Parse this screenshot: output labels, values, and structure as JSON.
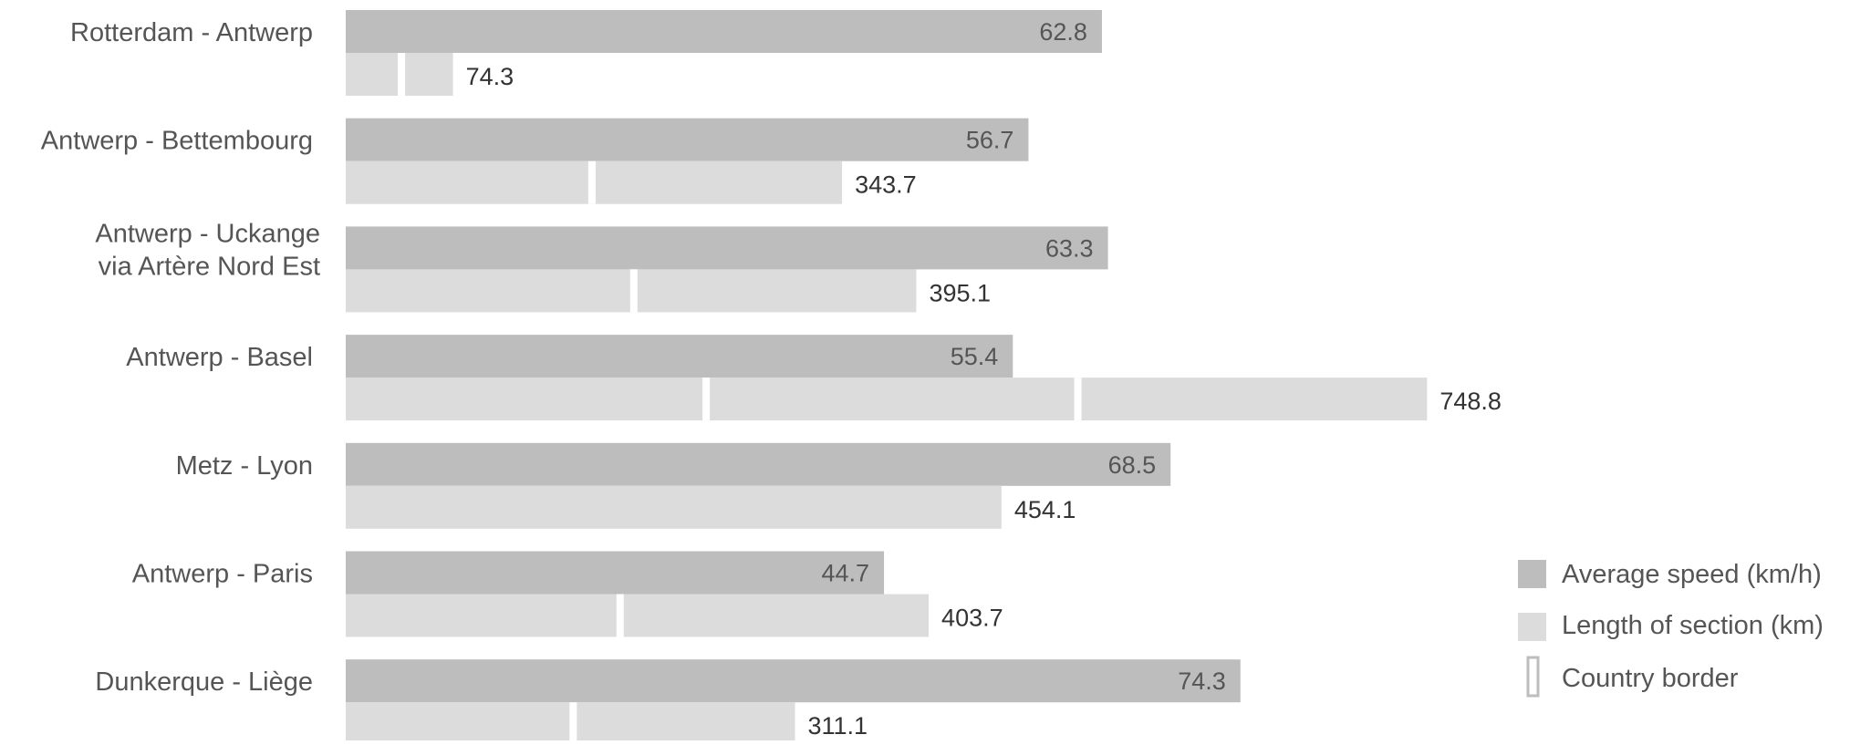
{
  "colors": {
    "speed_bar": "#bdbdbd",
    "length_bar": "#dcdcdc",
    "border_mark": "#ffffff",
    "legend_border_outline": "#bdbdbd"
  },
  "chart_data": {
    "type": "bar",
    "orientation": "horizontal",
    "grid": false,
    "legend_position": "bottom-right",
    "categories": [
      [
        "Rotterdam - Antwerp"
      ],
      [
        "Antwerp - Bettembourg"
      ],
      [
        "Antwerp - Uckange",
        "via Artère Nord Est"
      ],
      [
        "Antwerp - Basel"
      ],
      [
        "Metz - Lyon"
      ],
      [
        "Antwerp - Paris"
      ],
      [
        "Dunkerque - Liège"
      ]
    ],
    "series": [
      {
        "name": "Average speed (km/h)",
        "values": [
          62.8,
          56.7,
          63.3,
          55.4,
          68.5,
          44.7,
          74.3
        ],
        "labels": [
          "62.8",
          "56.7",
          "63.3",
          "55.4",
          "68.5",
          "44.7",
          "74.3"
        ]
      },
      {
        "name": "Length of section (km)",
        "values": [
          74.3,
          343.7,
          395.1,
          748.8,
          454.1,
          403.7,
          311.1
        ],
        "labels": [
          "74.3",
          "343.7",
          "395.1",
          "748.8",
          "454.1",
          "403.7",
          "311.1"
        ]
      }
    ],
    "country_border_km": [
      [
        38.6
      ],
      [
        170.5
      ],
      [
        199.5
      ],
      [
        249.6,
        507.0
      ],
      [],
      [
        190.0
      ],
      [
        157.5
      ]
    ],
    "legend": {
      "speed": "Average speed (km/h)",
      "length": "Length of section (km)",
      "border": "Country border"
    }
  }
}
